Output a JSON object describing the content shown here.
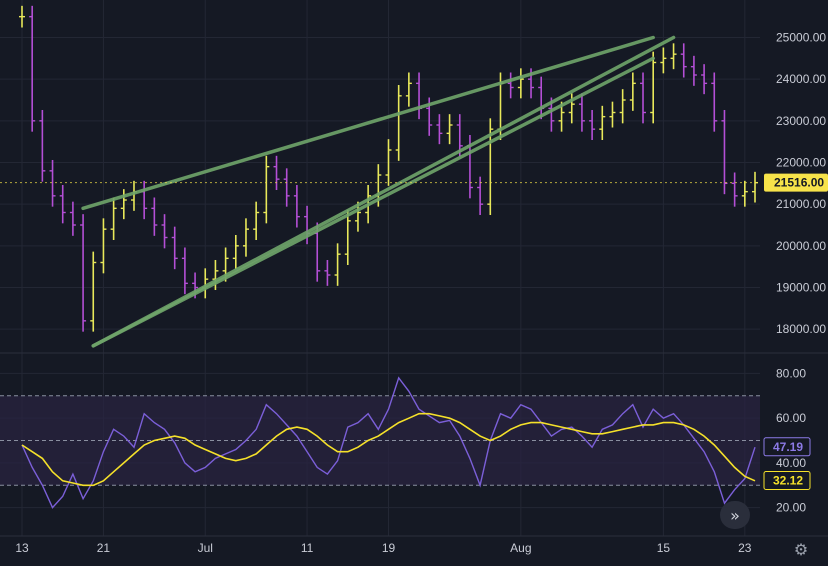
{
  "colors": {
    "background": "#151924",
    "grid": "#232734",
    "price_wick": "#ffff66",
    "price_up": "#e8e85a",
    "price_down": "#b44fd6",
    "trendline": "#6fa56a",
    "rsi": "#7b5fd8",
    "rsi_ma": "#f5e12a",
    "rsi_band": "#2a2342",
    "price_tag_bg": "#f7e34a",
    "rsi_tag_border": "#8c7ae6",
    "ma_tag_border": "#f5e12a"
  },
  "chart_data": [
    {
      "type": "line",
      "title": "",
      "description_series": "price",
      "y_ticks": [
        "18000.00",
        "19000.00",
        "20000.00",
        "21000.00",
        "22000.00",
        "23000.00",
        "24000.00",
        "25000.00"
      ],
      "ylim": [
        17500,
        25900
      ],
      "x_ticks": [
        "13",
        "21",
        "Jul",
        "11",
        "19",
        "Aug",
        "15",
        "23"
      ],
      "last_price_label": "21516.00",
      "series": [
        {
          "x": [
            "Jun 13",
            "Jun 14",
            "Jun 15",
            "Jun 16",
            "Jun 17",
            "Jun 18",
            "Jun 19",
            "Jun 20",
            "Jun 21",
            "Jun 22",
            "Jun 23",
            "Jun 24",
            "Jun 25",
            "Jun 26",
            "Jun 27",
            "Jun 28",
            "Jun 29",
            "Jun 30",
            "Jul 1",
            "Jul 2",
            "Jul 3",
            "Jul 4",
            "Jul 5",
            "Jul 6",
            "Jul 7",
            "Jul 8",
            "Jul 9",
            "Jul 10",
            "Jul 11",
            "Jul 12",
            "Jul 13",
            "Jul 14",
            "Jul 15",
            "Jul 16",
            "Jul 17",
            "Jul 18",
            "Jul 19",
            "Jul 20",
            "Jul 21",
            "Jul 22",
            "Jul 23",
            "Jul 24",
            "Jul 25",
            "Jul 26",
            "Jul 27",
            "Jul 28",
            "Jul 29",
            "Jul 30",
            "Jul 31",
            "Aug 1",
            "Aug 2",
            "Aug 3",
            "Aug 4",
            "Aug 5",
            "Aug 6",
            "Aug 7",
            "Aug 8",
            "Aug 9",
            "Aug 10",
            "Aug 11",
            "Aug 12",
            "Aug 13",
            "Aug 14",
            "Aug 15",
            "Aug 16",
            "Aug 17",
            "Aug 18",
            "Aug 19",
            "Aug 20",
            "Aug 21",
            "Aug 22",
            "Aug 23",
            "Aug 24"
          ],
          "values": [
            25500,
            23000,
            21800,
            21200,
            20800,
            20500,
            18200,
            19600,
            20400,
            20900,
            21100,
            21300,
            20900,
            20500,
            20200,
            19700,
            19100,
            19000,
            19200,
            19400,
            19700,
            20000,
            20400,
            20800,
            21900,
            21600,
            21200,
            20700,
            20300,
            19400,
            19300,
            19800,
            20600,
            20800,
            21200,
            21700,
            22300,
            23600,
            23900,
            23300,
            22900,
            22700,
            22900,
            22400,
            21400,
            21000,
            22800,
            23900,
            23800,
            24000,
            23800,
            23300,
            23000,
            23200,
            23400,
            23000,
            22800,
            23100,
            23200,
            23500,
            23900,
            23200,
            24400,
            24500,
            24600,
            24300,
            24100,
            23900,
            23000,
            21500,
            21200,
            21300,
            21516
          ]
        }
      ],
      "trendlines": [
        {
          "from": [
            "Jun 20",
            17600
          ],
          "to": [
            "Aug 16",
            25000
          ]
        },
        {
          "from": [
            "Jun 19",
            20900
          ],
          "to": [
            "Aug 14",
            25000
          ]
        },
        {
          "from": [
            "Jun 20",
            17600
          ],
          "to": [
            "Aug 14",
            24500
          ]
        }
      ]
    },
    {
      "type": "line",
      "description_series": "oscillator",
      "y_ticks": [
        "20.00",
        "40.00",
        "60.00",
        "80.00"
      ],
      "ylim": [
        10,
        86
      ],
      "band_levels": [
        30,
        50,
        70
      ],
      "rsi_label": "47.19",
      "ma_label": "32.12",
      "series": [
        {
          "role": "rsi",
          "values": [
            48,
            38,
            30,
            20,
            25,
            35,
            24,
            32,
            45,
            55,
            52,
            47,
            62,
            58,
            55,
            49,
            40,
            36,
            38,
            42,
            44,
            46,
            50,
            55,
            66,
            62,
            57,
            52,
            45,
            38,
            35,
            41,
            56,
            58,
            62,
            55,
            64,
            78,
            72,
            64,
            61,
            58,
            59,
            52,
            42,
            30,
            50,
            62,
            60,
            66,
            64,
            58,
            52,
            55,
            56,
            52,
            47,
            55,
            57,
            62,
            66,
            56,
            64,
            60,
            62,
            57,
            51,
            45,
            36,
            22,
            28,
            33,
            47
          ]
        },
        {
          "role": "ma",
          "values": [
            48,
            45,
            42,
            36,
            32,
            31,
            30,
            30,
            32,
            36,
            40,
            44,
            48,
            50,
            51,
            52,
            51,
            48,
            46,
            44,
            42,
            41,
            42,
            44,
            48,
            52,
            55,
            56,
            55,
            52,
            48,
            45,
            45,
            47,
            50,
            52,
            55,
            58,
            60,
            62,
            62,
            61,
            60,
            58,
            55,
            52,
            50,
            52,
            55,
            57,
            58,
            58,
            57,
            56,
            55,
            54,
            53,
            53,
            54,
            55,
            56,
            57,
            57,
            58,
            58,
            57,
            55,
            52,
            48,
            43,
            38,
            34,
            32
          ]
        }
      ]
    }
  ],
  "icons": {
    "scroll_right": "double-chevron-right-icon",
    "settings": "gear-icon"
  }
}
